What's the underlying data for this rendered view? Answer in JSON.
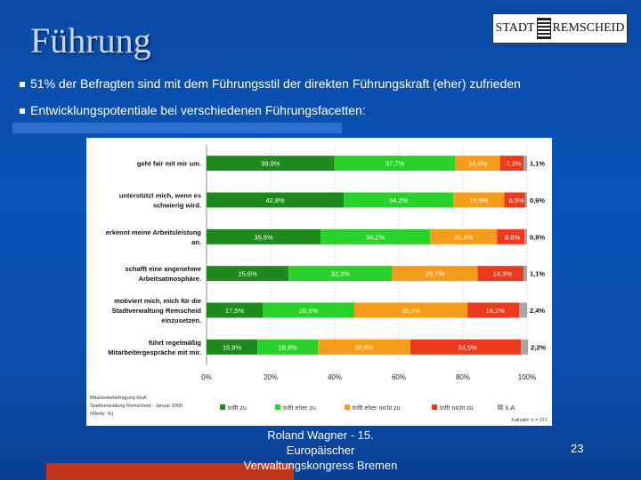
{
  "title": "Führung",
  "logo": {
    "left": "STADT",
    "right": "REMSCHEID"
  },
  "bullets": [
    "51% der Befragten sind mit dem Führungsstil der direkten Führungskraft (eher) zufrieden",
    "Entwicklungspotentiale bei verschiedenen Führungsfacetten:"
  ],
  "footer": {
    "line1": "Roland Wagner - 15.",
    "line2": "Europäischer",
    "line3": "Verwaltungskongress Bremen"
  },
  "page_number": "23",
  "chart_data": {
    "type": "bar",
    "orientation": "horizontal",
    "stacked": true,
    "categories": [
      [
        "geht fair mit mir um."
      ],
      [
        "unterstützt mich, wenn es",
        "schwierig wird."
      ],
      [
        "erkennt meine Arbeitsleistung",
        "an."
      ],
      [
        "schafft eine angenehme",
        "Arbeitsatmosphäre."
      ],
      [
        "motiviert mich, mich für die",
        "Stadtverwaltung Remscheid",
        "einzusetzen."
      ],
      [
        "führt regelmäßig",
        "Mitarbeitergespräche mit mir."
      ]
    ],
    "series": [
      {
        "name": "trifft zu",
        "color": "#1e8a1e",
        "values": [
          39.9,
          42.8,
          35.6,
          25.6,
          17.5,
          15.9
        ],
        "labels": [
          "39,9%",
          "42,8%",
          "35,6%",
          "25,6%",
          "17,5%",
          "15,9%"
        ]
      },
      {
        "name": "trifft eher zu",
        "color": "#2bd12b",
        "values": [
          37.7,
          34.2,
          34.2,
          32.3,
          28.6,
          18.9
        ],
        "labels": [
          "37,7%",
          "34,2%",
          "34,2%",
          "32,3%",
          "28,6%",
          "18,9%"
        ]
      },
      {
        "name": "trifft eher nicht zu",
        "color": "#f59d1a",
        "values": [
          14.0,
          15.9,
          20.8,
          26.7,
          35.3,
          28.8
        ],
        "labels": [
          "14,0%",
          "15,9%",
          "20,8%",
          "26,7%",
          "35,3%",
          "28,8%"
        ]
      },
      {
        "name": "trifft nicht zu",
        "color": "#ee3a1c",
        "values": [
          7.3,
          6.5,
          8.6,
          14.3,
          16.2,
          34.5
        ],
        "labels": [
          "7,3%",
          "6,5%",
          "8,6%",
          "14,3%",
          "16,2%",
          "34,5%"
        ]
      },
      {
        "name": "k.A.",
        "color": "#a6a6a6",
        "values": [
          1.1,
          0.6,
          0.8,
          1.1,
          2.4,
          2.2
        ],
        "labels": [
          "1,1%",
          "0,6%",
          "0,8%",
          "1,1%",
          "2,4%",
          "2,2%"
        ]
      }
    ],
    "x_ticks": [
      "0%",
      "20%",
      "40%",
      "60%",
      "80%",
      "100%"
    ],
    "xlim": [
      0,
      100
    ],
    "source": [
      "Mitarbeiterbefragung MuA",
      "Stadtverwaltung Remscheid - Januar 2005",
      "(Werte: %)"
    ],
    "sample": "Fallzahl: n = 371"
  }
}
